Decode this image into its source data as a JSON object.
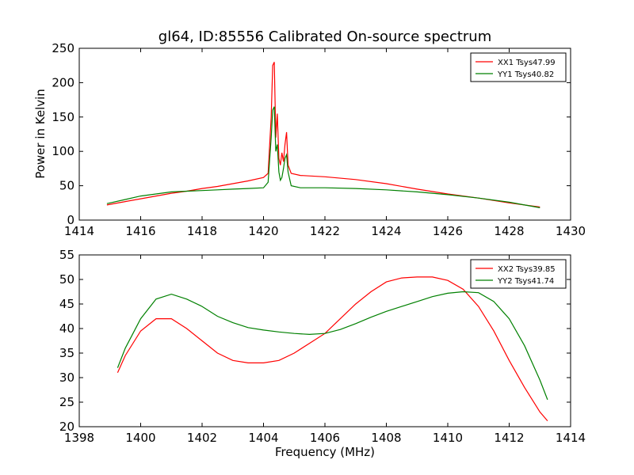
{
  "chart_data": [
    {
      "type": "line",
      "title": "gl64, ID:85556 Calibrated On-source spectrum",
      "xlabel": "",
      "ylabel": "Power in Kelvin",
      "xlim": [
        1414,
        1430
      ],
      "ylim": [
        0,
        250
      ],
      "xticks": [
        1414,
        1416,
        1418,
        1420,
        1422,
        1424,
        1426,
        1428,
        1430
      ],
      "yticks": [
        0,
        50,
        100,
        150,
        200,
        250
      ],
      "grid": false,
      "legend_position": "top-right",
      "series": [
        {
          "name": "XX1 Tsys47.99",
          "color": "#ff0000",
          "x": [
            1414.9,
            1415.5,
            1416,
            1416.5,
            1417,
            1417.5,
            1418,
            1418.5,
            1419,
            1419.5,
            1420,
            1420.15,
            1420.25,
            1420.3,
            1420.35,
            1420.4,
            1420.45,
            1420.5,
            1420.55,
            1420.6,
            1420.65,
            1420.7,
            1420.75,
            1420.8,
            1420.9,
            1421.2,
            1422,
            1423,
            1424,
            1425,
            1426,
            1427,
            1428,
            1429
          ],
          "y": [
            22,
            27,
            31,
            35,
            39,
            42,
            46,
            49,
            53,
            57,
            62,
            68,
            150,
            225,
            230,
            120,
            155,
            90,
            80,
            98,
            85,
            110,
            128,
            80,
            68,
            65,
            63,
            59,
            53,
            45,
            38,
            32,
            25,
            19
          ]
        },
        {
          "name": "YY1 Tsys40.82",
          "color": "#008000",
          "x": [
            1414.9,
            1415.5,
            1416,
            1416.5,
            1417,
            1417.5,
            1418,
            1418.5,
            1419,
            1419.5,
            1420,
            1420.15,
            1420.25,
            1420.3,
            1420.35,
            1420.4,
            1420.45,
            1420.5,
            1420.55,
            1420.6,
            1420.65,
            1420.7,
            1420.75,
            1420.8,
            1420.9,
            1421.2,
            1422,
            1423,
            1424,
            1425,
            1426,
            1427,
            1428,
            1429
          ],
          "y": [
            24,
            30,
            35,
            38,
            41,
            42,
            43,
            44,
            45,
            46,
            47,
            55,
            120,
            160,
            165,
            100,
            110,
            70,
            58,
            62,
            75,
            90,
            95,
            70,
            50,
            47,
            47,
            46,
            44,
            41,
            37,
            32,
            26,
            18
          ]
        }
      ]
    },
    {
      "type": "line",
      "title": "",
      "xlabel": "Frequency (MHz)",
      "ylabel": "",
      "xlim": [
        1398,
        1414
      ],
      "ylim": [
        20,
        55
      ],
      "xticks": [
        1398,
        1400,
        1402,
        1404,
        1406,
        1408,
        1410,
        1412,
        1414
      ],
      "yticks": [
        20,
        25,
        30,
        35,
        40,
        45,
        50,
        55
      ],
      "grid": false,
      "legend_position": "top-right",
      "series": [
        {
          "name": "XX2 Tsys39.85",
          "color": "#ff0000",
          "x": [
            1399.25,
            1399.5,
            1400,
            1400.5,
            1401,
            1401.5,
            1402,
            1402.5,
            1403,
            1403.5,
            1404,
            1404.5,
            1405,
            1405.5,
            1406,
            1406.5,
            1407,
            1407.5,
            1408,
            1408.5,
            1409,
            1409.5,
            1410,
            1410.5,
            1411,
            1411.5,
            1412,
            1412.5,
            1413,
            1413.25
          ],
          "y": [
            31,
            34.5,
            39.5,
            42,
            42,
            40,
            37.5,
            35,
            33.5,
            33,
            33,
            33.5,
            35,
            37,
            39,
            42,
            45,
            47.5,
            49.5,
            50.3,
            50.5,
            50.5,
            49.8,
            48,
            44.5,
            39.5,
            33.5,
            28,
            23,
            21.2
          ]
        },
        {
          "name": "YY2 Tsys41.74",
          "color": "#008000",
          "x": [
            1399.25,
            1399.5,
            1400,
            1400.5,
            1401,
            1401.5,
            1402,
            1402.5,
            1403,
            1403.5,
            1404,
            1404.5,
            1405,
            1405.5,
            1406,
            1406.5,
            1407,
            1407.5,
            1408,
            1408.5,
            1409,
            1409.5,
            1410,
            1410.5,
            1411,
            1411.5,
            1412,
            1412.5,
            1413,
            1413.25
          ],
          "y": [
            32,
            36,
            42,
            46,
            47,
            46,
            44.5,
            42.5,
            41.2,
            40.2,
            39.7,
            39.3,
            39,
            38.8,
            39,
            39.8,
            41,
            42.3,
            43.5,
            44.5,
            45.5,
            46.5,
            47.2,
            47.5,
            47.3,
            45.5,
            42,
            36.5,
            29.5,
            25.5
          ]
        }
      ]
    }
  ]
}
